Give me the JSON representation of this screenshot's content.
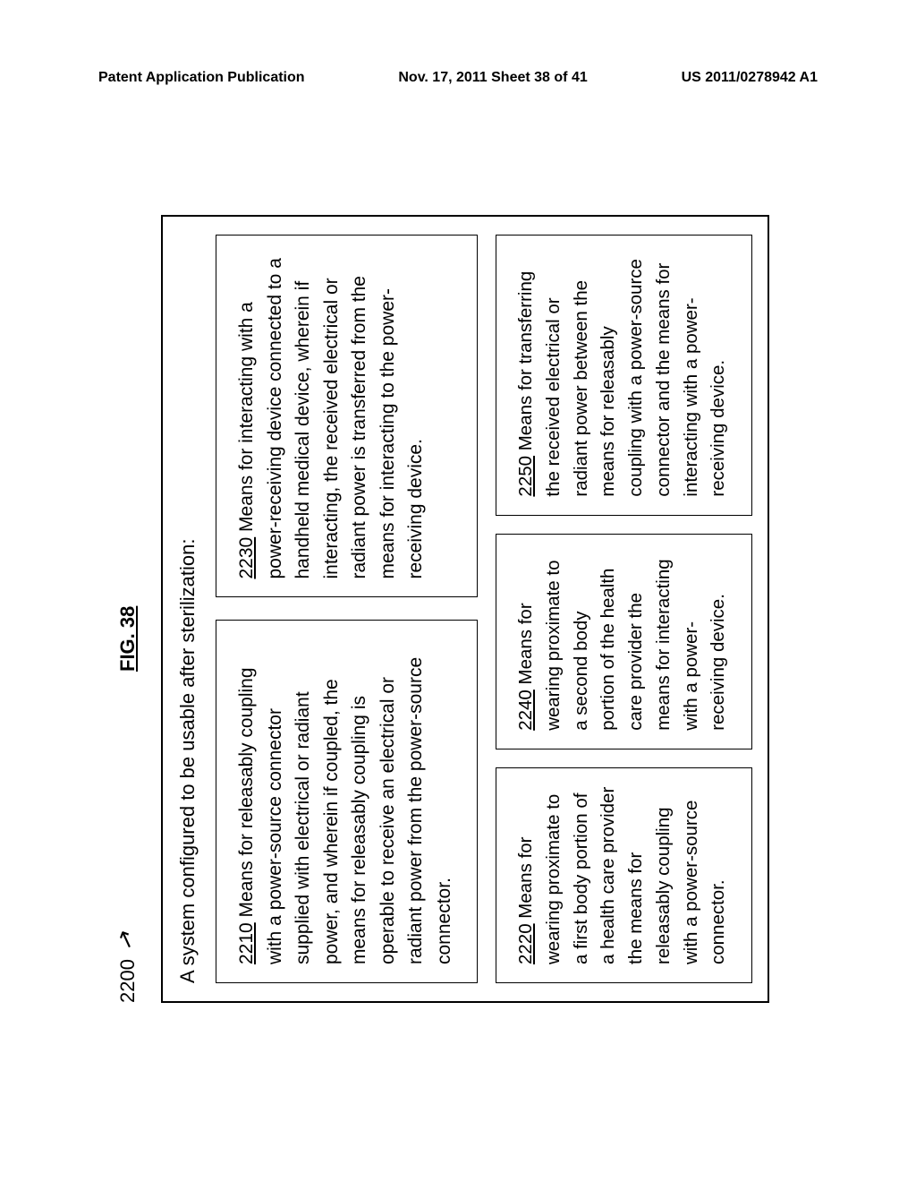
{
  "header": {
    "left": "Patent Application Publication",
    "center": "Nov. 17, 2011  Sheet 38 of 41",
    "right": "US 2011/0278942 A1"
  },
  "figure": {
    "ref_num": "2200",
    "arrow": "↗",
    "title": "FIG. 38"
  },
  "system_title": "A system configured to be usable after sterilization:",
  "boxes": {
    "b2210": {
      "ref": "2210",
      "text": "  Means for releasably coupling with a power-source connector supplied with electrical or radiant power, and wherein if coupled, the means for releasably coupling is operable to receive an electrical or radiant power from the power-source connector."
    },
    "b2230": {
      "ref": "2230",
      "text": "  Means for interacting with a power-receiving device connected to a handheld medical device, wherein if interacting, the received electrical or radiant power is transferred from the means for interacting to the power-receiving device."
    },
    "b2220": {
      "ref": "2220",
      "text": "  Means for wearing proximate to a first body portion of a health care provider the means for releasably coupling with a power-source connector."
    },
    "b2240": {
      "ref": "2240",
      "text": "  Means for wearing proximate to a second body portion of the health care provider the means for interacting with a power-receiving device."
    },
    "b2250": {
      "ref": "2250",
      "text": "  Means for transferring the received electrical or radiant power between the means for releasably coupling with a power-source connector and the means for interacting with a power-receiving device."
    }
  }
}
